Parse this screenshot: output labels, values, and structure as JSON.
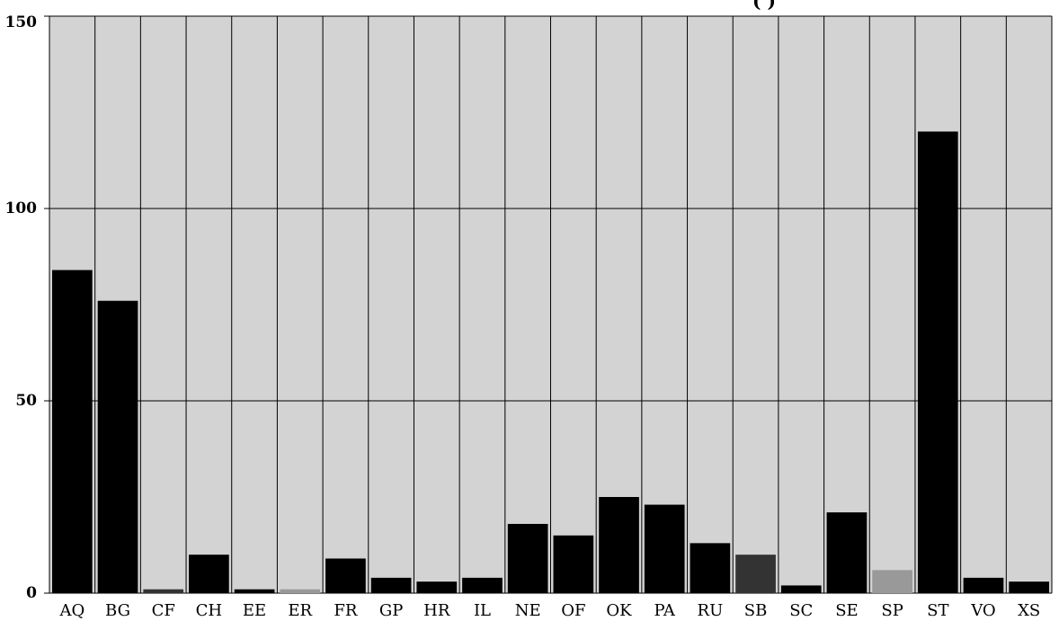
{
  "chart_data": {
    "type": "bar",
    "title": "(  )",
    "categories": [
      "AQ",
      "BG",
      "CF",
      "CH",
      "EE",
      "ER",
      "FR",
      "GP",
      "HR",
      "IL",
      "NE",
      "OF",
      "OK",
      "PA",
      "RU",
      "SB",
      "SC",
      "SE",
      "SP",
      "ST",
      "VO",
      "XS"
    ],
    "values": [
      84,
      76,
      1,
      10,
      1,
      1,
      9,
      4,
      3,
      4,
      18,
      15,
      25,
      23,
      13,
      10,
      2,
      21,
      6,
      120,
      4,
      3
    ],
    "bar_colors": [
      "#000000",
      "#000000",
      "#333333",
      "#000000",
      "#000000",
      "#999999",
      "#000000",
      "#000000",
      "#000000",
      "#000000",
      "#000000",
      "#000000",
      "#000000",
      "#000000",
      "#000000",
      "#333333",
      "#000000",
      "#000000",
      "#999999",
      "#000000",
      "#000000",
      "#000000"
    ],
    "ylim": [
      0,
      150
    ],
    "yticks": [
      0,
      50,
      100,
      150
    ],
    "xlabel": "",
    "ylabel": "",
    "grid": true,
    "background": "#d3d3d3",
    "grid_color": "#000000"
  }
}
